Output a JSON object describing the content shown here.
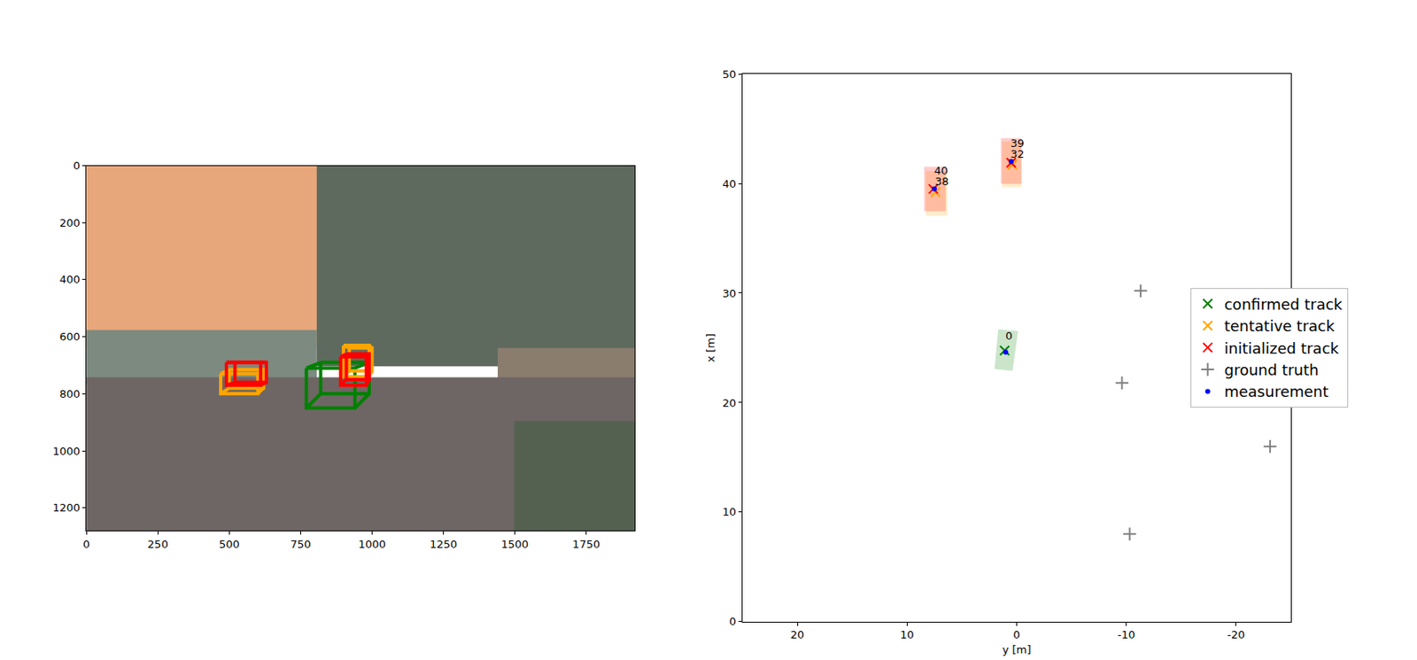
{
  "chart_data": [
    {
      "type": "image",
      "xlim": [
        0,
        1920
      ],
      "ylim": [
        1280,
        0
      ],
      "xticks": [
        0,
        250,
        500,
        750,
        1000,
        1250,
        1500,
        1750
      ],
      "yticks": [
        0,
        200,
        400,
        600,
        800,
        1000,
        1200
      ],
      "series": [
        {
          "color": "orange",
          "boxes": [
            [
              470,
              730,
              600,
              800
            ],
            [
              500,
              715,
              620,
              780
            ]
          ]
        },
        {
          "color": "red",
          "boxes": [
            [
              490,
              690,
              610,
              770
            ],
            [
              520,
              690,
              630,
              760
            ]
          ]
        },
        {
          "color": "green",
          "boxes": [
            [
              770,
              710,
              940,
              850
            ],
            [
              820,
              690,
              990,
              800
            ]
          ]
        },
        {
          "color": "orange",
          "boxes": [
            [
              900,
              630,
              990,
              740
            ],
            [
              920,
              640,
              1000,
              720
            ]
          ]
        },
        {
          "color": "red",
          "boxes": [
            [
              890,
              670,
              980,
              770
            ],
            [
              910,
              660,
              990,
              750
            ]
          ]
        }
      ]
    },
    {
      "type": "scatter",
      "xlabel": "y [m]",
      "ylabel": "x [m]",
      "xlim": [
        25,
        -25
      ],
      "ylim": [
        0,
        50
      ],
      "xticks": [
        20,
        10,
        0,
        -10,
        -20
      ],
      "yticks": [
        0,
        10,
        20,
        30,
        40,
        50
      ],
      "legend": "right",
      "boxes": [
        {
          "color": "green",
          "corners": [
            [
              1.65,
              26.65
            ],
            [
              -0.08,
              26.5
            ],
            [
              0.41,
              22.94
            ],
            [
              1.98,
              23.1
            ]
          ]
        },
        {
          "color": "orange",
          "corners": [
            [
              1.3,
              43.8
            ],
            [
              -0.4,
              43.8
            ],
            [
              -0.4,
              39.7
            ],
            [
              1.3,
              39.7
            ]
          ]
        },
        {
          "color": "red",
          "corners": [
            [
              1.4,
              44.1
            ],
            [
              -0.4,
              44.1
            ],
            [
              -0.4,
              40.0
            ],
            [
              1.4,
              40.0
            ]
          ]
        },
        {
          "color": "orange",
          "corners": [
            [
              8.25,
              41.1
            ],
            [
              6.35,
              41.1
            ],
            [
              6.35,
              37.1
            ],
            [
              8.25,
              37.1
            ]
          ]
        },
        {
          "color": "red",
          "corners": [
            [
              8.4,
              41.5
            ],
            [
              6.5,
              41.5
            ],
            [
              6.5,
              37.5
            ],
            [
              8.4,
              37.5
            ]
          ]
        }
      ],
      "series": [
        {
          "name": "confirmed track",
          "color": "green",
          "marker": "x",
          "x": [
            1.1
          ],
          "y": [
            24.75
          ]
        },
        {
          "name": "tentative track",
          "color": "orange",
          "marker": "x",
          "x": [
            7.4,
            0.4
          ],
          "y": [
            39.2,
            41.7
          ]
        },
        {
          "name": "initialized track",
          "color": "red",
          "marker": "x",
          "x": [
            7.6,
            0.5
          ],
          "y": [
            39.5,
            41.9
          ]
        },
        {
          "name": "ground truth",
          "color": "gray",
          "marker": "plus",
          "x": [
            -11.3,
            -9.6,
            -23.1,
            -10.3
          ],
          "y": [
            30.2,
            21.8,
            16.0,
            8.0
          ]
        },
        {
          "name": "measurement",
          "color": "blue",
          "marker": "dot",
          "x": [
            1.0,
            0.5,
            7.5
          ],
          "y": [
            24.6,
            42.0,
            39.5
          ]
        }
      ],
      "annotations": [
        {
          "text": "0",
          "x": 0.7,
          "y": 26.1
        },
        {
          "text": "39",
          "x": -0.1,
          "y": 43.7
        },
        {
          "text": "32",
          "x": -0.1,
          "y": 42.7
        },
        {
          "text": "40",
          "x": 6.9,
          "y": 41.2
        },
        {
          "text": "38",
          "x": 6.8,
          "y": 40.2
        }
      ]
    }
  ]
}
